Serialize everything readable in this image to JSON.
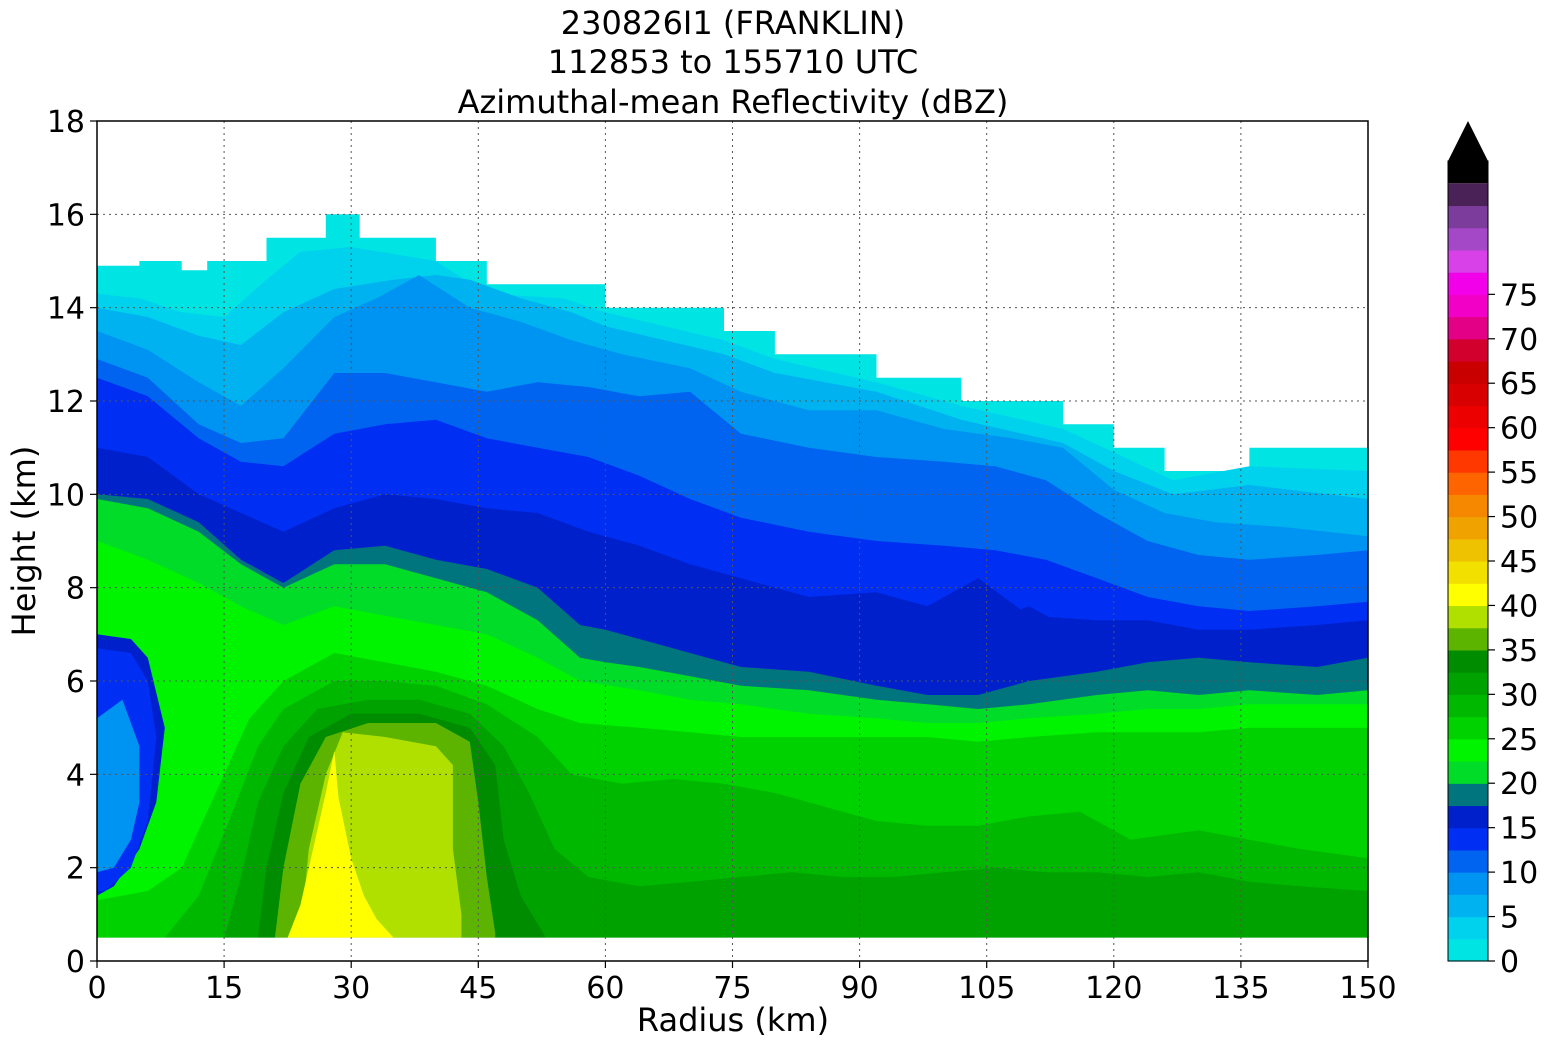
{
  "title_lines": [
    "230826I1 (FRANKLIN)",
    "112853 to 155710 UTC",
    "Azimuthal-mean Reflectivity (dBZ)"
  ],
  "chart_data": {
    "type": "heatmap",
    "title": "230826I1 (FRANKLIN) / 112853 to 155710 UTC / Azimuthal-mean Reflectivity (dBZ)",
    "xlabel": "Radius (km)",
    "ylabel": "Height (km)",
    "xlim": [
      0,
      150
    ],
    "ylim": [
      0,
      18
    ],
    "xticks": [
      0,
      15,
      30,
      45,
      60,
      75,
      90,
      105,
      120,
      135,
      150
    ],
    "yticks": [
      0,
      2,
      4,
      6,
      8,
      10,
      12,
      14,
      16,
      18
    ],
    "grid": true,
    "colorbar": {
      "label": "dBZ",
      "ticks": [
        0,
        5,
        10,
        15,
        20,
        25,
        30,
        35,
        40,
        45,
        50,
        55,
        60,
        65,
        70,
        75
      ],
      "levels_step": 2.5,
      "extend": "max",
      "colors": [
        "#00e4e4",
        "#00d2ee",
        "#00b2f0",
        "#0094f2",
        "#0064f0",
        "#002ef2",
        "#0020cc",
        "#00757d",
        "#00dc28",
        "#00f400",
        "#00d200",
        "#00b800",
        "#00a200",
        "#008c00",
        "#5cb400",
        "#b0e000",
        "#ffff00",
        "#f2e000",
        "#eec200",
        "#f0a200",
        "#f68800",
        "#fe6400",
        "#ff3800",
        "#ff0000",
        "#ec0000",
        "#d80000",
        "#c80000",
        "#d2002c",
        "#e40086",
        "#f200c6",
        "#f200ea",
        "#d840e8",
        "#a448c8",
        "#7c3c9c",
        "#4a2258",
        "#000000"
      ]
    },
    "echo_top_km": [
      [
        0,
        14.9
      ],
      [
        5,
        15.0
      ],
      [
        10,
        14.8
      ],
      [
        13,
        15.0
      ],
      [
        20,
        15.5
      ],
      [
        27,
        16.0
      ],
      [
        31,
        15.5
      ],
      [
        40,
        15.0
      ],
      [
        46,
        14.5
      ],
      [
        54,
        14.5
      ],
      [
        60,
        14.0
      ],
      [
        74,
        13.5
      ],
      [
        80,
        13.0
      ],
      [
        92,
        12.5
      ],
      [
        102,
        12.0
      ],
      [
        114,
        11.5
      ],
      [
        120,
        11.0
      ],
      [
        126,
        10.5
      ],
      [
        136,
        11.0
      ],
      [
        150,
        11.0
      ]
    ],
    "lowest_data_height_km": 0.5,
    "features": [
      {
        "description_dbz_max": 37,
        "radius_km": 28,
        "height_km": [
          0.5,
          4.5
        ]
      },
      {
        "description_dbz": "30-35",
        "radius_km": [
          24,
          45
        ],
        "height_km": [
          0.5,
          5.2
        ]
      },
      {
        "description_dbz": "5-10",
        "radius_km": [
          0,
          8
        ],
        "height_km": [
          1.4,
          7.0
        ]
      }
    ]
  }
}
